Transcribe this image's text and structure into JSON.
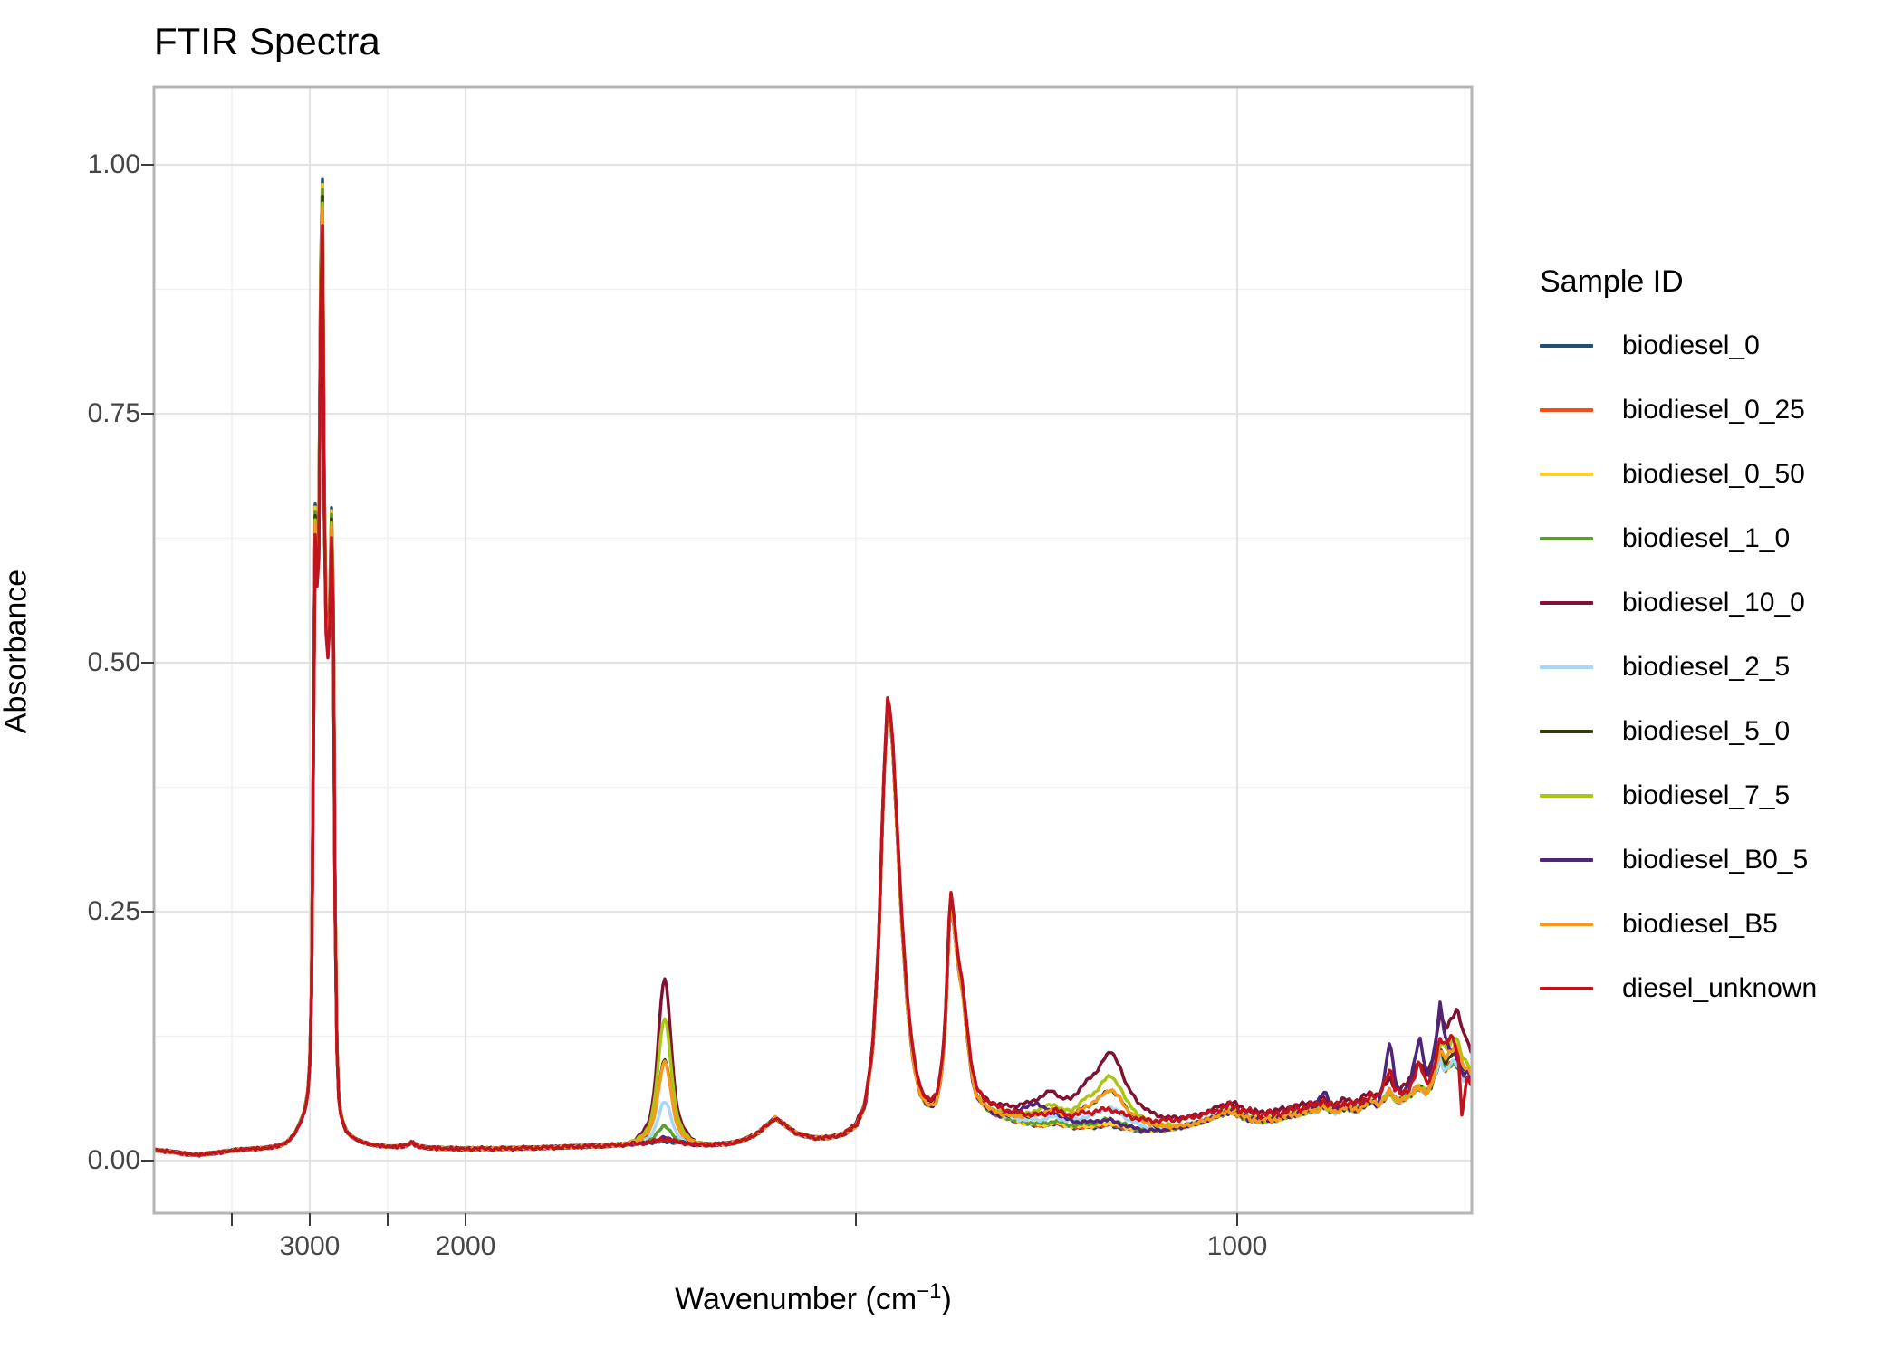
{
  "title": "FTIR Spectra",
  "y_axis": {
    "label": "Absorbance",
    "ticks": [
      {
        "value": 1.0,
        "label": "1.00"
      },
      {
        "value": 0.75,
        "label": "0.75"
      },
      {
        "value": 0.5,
        "label": "0.50"
      },
      {
        "value": 0.25,
        "label": "0.25"
      },
      {
        "value": 0.0,
        "label": "0.00"
      }
    ],
    "minor_ticks": [
      0.875,
      0.625,
      0.375,
      0.125
    ]
  },
  "x_axis": {
    "label_main": "Wavenumber (cm",
    "label_sup": "−1",
    "label_close": ")",
    "ticks": [
      {
        "value": 3500,
        "label": ""
      },
      {
        "value": 3000,
        "label": "3000"
      },
      {
        "value": 2500,
        "label": ""
      },
      {
        "value": 2000,
        "label": "2000"
      },
      {
        "value": 1500,
        "label": ""
      },
      {
        "value": 1000,
        "label": "1000"
      }
    ]
  },
  "legend": {
    "title": "Sample ID"
  },
  "colors": {
    "grid_major": "#e3e3e3",
    "grid_minor": "#f1f1f1",
    "panel_border": "#b5b5b5",
    "tick_mark": "#3c3c3c",
    "tick_text": "#454545"
  },
  "chart_data": {
    "type": "line",
    "title": "FTIR Spectra",
    "xlabel": "Wavenumber (cm^-1)",
    "ylabel": "Absorbance",
    "legend_title": "Sample ID",
    "x_reversed": true,
    "x_range": [
      4000,
      690
    ],
    "x_breaks": [
      3000,
      2000,
      1000
    ],
    "x_minor_breaks": [
      3500,
      2500,
      1500
    ],
    "y_breaks": [
      0.0,
      0.25,
      0.5,
      0.75,
      1.0
    ],
    "ylim": [
      -0.052,
      1.078
    ],
    "grid": true,
    "legend_position": "right",
    "peak_annotations": {
      "ch_stretch_peaks": [
        2963,
        2924,
        2856
      ],
      "ch_stretch_max_absorbance": 1.03,
      "carbonyl_center": 1745,
      "ch2_bend_peak": [
        1458,
        0.47
      ],
      "ch3_bend_peak": [
        1376,
        0.27
      ]
    },
    "base_spectrum": {
      "wavenumber": [
        4000,
        3950,
        3900,
        3850,
        3800,
        3740,
        3700,
        3650,
        3600,
        3550,
        3500,
        3440,
        3380,
        3320,
        3260,
        3200,
        3150,
        3100,
        3060,
        3030,
        3010,
        2998,
        2988,
        2980,
        2974,
        2968,
        2963,
        2958,
        2950,
        2942,
        2934,
        2928,
        2924,
        2919,
        2913,
        2906,
        2898,
        2890,
        2880,
        2870,
        2862,
        2856,
        2850,
        2844,
        2838,
        2830,
        2822,
        2814,
        2806,
        2795,
        2780,
        2760,
        2730,
        2700,
        2650,
        2600,
        2550,
        2500,
        2450,
        2400,
        2365,
        2345,
        2325,
        2300,
        2250,
        2200,
        2140,
        2080,
        2020,
        1960,
        1900,
        1862,
        1820,
        1800,
        1780,
        1765,
        1745,
        1725,
        1705,
        1685,
        1665,
        1645,
        1625,
        1603,
        1590,
        1575,
        1555,
        1535,
        1515,
        1500,
        1488,
        1478,
        1470,
        1464,
        1458,
        1452,
        1446,
        1440,
        1432,
        1424,
        1416,
        1408,
        1400,
        1394,
        1388,
        1383,
        1379,
        1376,
        1372,
        1368,
        1364,
        1360,
        1354,
        1348,
        1342,
        1334,
        1325,
        1315,
        1305,
        1295,
        1285,
        1275,
        1265,
        1255,
        1245,
        1238,
        1230,
        1220,
        1210,
        1200,
        1192,
        1184,
        1176,
        1168,
        1160,
        1152,
        1144,
        1136,
        1126,
        1116,
        1106,
        1096,
        1086,
        1076,
        1066,
        1056,
        1046,
        1036,
        1026,
        1016,
        1008,
        1000,
        992,
        984,
        976,
        968,
        960,
        952,
        944,
        936,
        928,
        920,
        912,
        904,
        896,
        888,
        880,
        872,
        864,
        856,
        848,
        840,
        832,
        824,
        816,
        808,
        800,
        794,
        788,
        782,
        776,
        770,
        764,
        758,
        752,
        746,
        740,
        734,
        728,
        722,
        716,
        710,
        704,
        698,
        692,
        684,
        678
      ],
      "absorbance": [
        0.011,
        0.01,
        0.009,
        0.008,
        0.007,
        0.006,
        0.006,
        0.007,
        0.008,
        0.009,
        0.01,
        0.011,
        0.012,
        0.012,
        0.013,
        0.015,
        0.018,
        0.026,
        0.038,
        0.05,
        0.07,
        0.1,
        0.17,
        0.32,
        0.48,
        0.6,
        0.645,
        0.6,
        0.555,
        0.6,
        0.74,
        0.92,
        0.975,
        0.945,
        0.8,
        0.62,
        0.54,
        0.5,
        0.505,
        0.545,
        0.615,
        0.645,
        0.57,
        0.4,
        0.26,
        0.14,
        0.085,
        0.062,
        0.05,
        0.042,
        0.034,
        0.028,
        0.024,
        0.021,
        0.018,
        0.016,
        0.015,
        0.014,
        0.014,
        0.015,
        0.016,
        0.019,
        0.016,
        0.014,
        0.013,
        0.013,
        0.012,
        0.012,
        0.012,
        0.012,
        0.013,
        0.014,
        0.015,
        0.016,
        0.017,
        0.018,
        0.019,
        0.018,
        0.016,
        0.016,
        0.017,
        0.02,
        0.028,
        0.043,
        0.035,
        0.027,
        0.023,
        0.023,
        0.027,
        0.035,
        0.055,
        0.11,
        0.22,
        0.37,
        0.465,
        0.42,
        0.33,
        0.24,
        0.15,
        0.095,
        0.068,
        0.057,
        0.055,
        0.06,
        0.085,
        0.13,
        0.21,
        0.265,
        0.24,
        0.21,
        0.185,
        0.17,
        0.125,
        0.085,
        0.065,
        0.057,
        0.05,
        0.046,
        0.043,
        0.041,
        0.039,
        0.037,
        0.036,
        0.035,
        0.036,
        0.038,
        0.036,
        0.034,
        0.033,
        0.034,
        0.033,
        0.034,
        0.035,
        0.036,
        0.034,
        0.033,
        0.032,
        0.031,
        0.03,
        0.03,
        0.03,
        0.031,
        0.032,
        0.033,
        0.035,
        0.037,
        0.039,
        0.042,
        0.045,
        0.048,
        0.05,
        0.047,
        0.044,
        0.042,
        0.041,
        0.04,
        0.042,
        0.041,
        0.043,
        0.045,
        0.046,
        0.047,
        0.049,
        0.051,
        0.05,
        0.056,
        0.052,
        0.049,
        0.052,
        0.054,
        0.051,
        0.052,
        0.057,
        0.06,
        0.056,
        0.062,
        0.07,
        0.062,
        0.06,
        0.062,
        0.065,
        0.068,
        0.074,
        0.072,
        0.068,
        0.075,
        0.088,
        0.102,
        0.09,
        0.096,
        0.099,
        0.094,
        0.082,
        0.086,
        0.075,
        0.07,
        0.073
      ]
    },
    "ester_shape": {
      "wavenumber": [
        1350,
        1320,
        1290,
        1262,
        1245,
        1232,
        1218,
        1205,
        1195,
        1185,
        1175,
        1165,
        1155,
        1145,
        1132,
        1118,
        1104,
        1090,
        1076,
        1062,
        1050
      ],
      "weight": [
        0,
        0.06,
        0.13,
        0.3,
        0.42,
        0.3,
        0.33,
        0.5,
        0.62,
        0.72,
        0.9,
        1.0,
        0.85,
        0.55,
        0.35,
        0.22,
        0.13,
        0.08,
        0.04,
        0.01,
        0
      ]
    },
    "carbonyl_center": 1745,
    "series": [
      {
        "id": "biodiesel_0",
        "label": "biodiesel_0",
        "color": "#1f4e79",
        "carbonyl_add": 0.0,
        "ester_factor": 0.0,
        "ch_scale": 1.053,
        "extras": []
      },
      {
        "id": "biodiesel_0_25",
        "label": "biodiesel_0_25",
        "color": "#ef4e17",
        "carbonyl_add": 0.002,
        "ester_factor": 0.001,
        "ch_scale": 1.046,
        "extras": []
      },
      {
        "id": "biodiesel_0_50",
        "label": "biodiesel_0_50",
        "color": "#fbcf2c",
        "carbonyl_add": 0.004,
        "ester_factor": 0.002,
        "ch_scale": 1.048,
        "extras": []
      },
      {
        "id": "biodiesel_1_0",
        "label": "biodiesel_1_0",
        "color": "#5b9e2d",
        "carbonyl_add": 0.016,
        "ester_factor": 0.006,
        "ch_scale": 1.042,
        "extras": []
      },
      {
        "id": "biodiesel_10_0",
        "label": "biodiesel_10_0",
        "color": "#7e1230",
        "carbonyl_add": 0.163,
        "ester_factor": 0.068,
        "ch_scale": 1.021,
        "extras": [
          [
            1520,
            0
          ],
          [
            1480,
            0.004
          ],
          [
            1440,
            0.006
          ],
          [
            1400,
            0.005
          ],
          [
            1360,
            0.008
          ],
          [
            1340,
            0.006
          ],
          [
            1100,
            0.006
          ],
          [
            1060,
            0.008
          ],
          [
            1015,
            0.009
          ],
          [
            985,
            0.008
          ],
          [
            940,
            0.008
          ],
          [
            910,
            0.008
          ],
          [
            885,
            0.007
          ],
          [
            855,
            0.008
          ],
          [
            820,
            0.009
          ],
          [
            800,
            0.013
          ],
          [
            780,
            0.012
          ],
          [
            768,
            0.02
          ],
          [
            761,
            0.027
          ],
          [
            752,
            0.016
          ],
          [
            742,
            0.025
          ],
          [
            734,
            0.048
          ],
          [
            726,
            0.04
          ],
          [
            718,
            0.045
          ],
          [
            712,
            0.057
          ],
          [
            706,
            0.05
          ],
          [
            700,
            0.038
          ],
          [
            694,
            0.028
          ],
          [
            678,
            0.024
          ]
        ]
      },
      {
        "id": "biodiesel_2_5",
        "label": "biodiesel_2_5",
        "color": "#a5d7f7",
        "carbonyl_add": 0.04,
        "ester_factor": 0.018,
        "ch_scale": 1.021,
        "extras": []
      },
      {
        "id": "biodiesel_5_0",
        "label": "biodiesel_5_0",
        "color": "#313d08",
        "carbonyl_add": 0.082,
        "ester_factor": 0.036,
        "ch_scale": 1.035,
        "extras": [
          [
            745,
            0
          ],
          [
            734,
            0.01
          ],
          [
            722,
            0.008
          ],
          [
            712,
            0.015
          ],
          [
            700,
            0.008
          ],
          [
            678,
            0.005
          ]
        ]
      },
      {
        "id": "biodiesel_7_5",
        "label": "biodiesel_7_5",
        "color": "#a9c614",
        "carbonyl_add": 0.124,
        "ester_factor": 0.05,
        "ch_scale": 1.028,
        "extras": [
          [
            745,
            0
          ],
          [
            738,
            0.01
          ],
          [
            730,
            0.022
          ],
          [
            722,
            0.018
          ],
          [
            714,
            0.028
          ],
          [
            706,
            0.02
          ],
          [
            698,
            0.012
          ],
          [
            678,
            0.008
          ]
        ]
      },
      {
        "id": "biodiesel_B0_5",
        "label": "biodiesel_B0_5",
        "color": "#4f2579",
        "carbonyl_add": 0.004,
        "ester_factor": 0.002,
        "ch_scale": 1.02,
        "extras": [
          [
            1310,
            0
          ],
          [
            1290,
            0.01
          ],
          [
            1262,
            0.022
          ],
          [
            1240,
            0.01
          ],
          [
            1215,
            0.005
          ],
          [
            1180,
            0.004
          ],
          [
            1150,
            0.002
          ],
          [
            1120,
            0
          ],
          [
            910,
            0
          ],
          [
            897,
            0.006
          ],
          [
            885,
            0.013
          ],
          [
            872,
            0.004
          ],
          [
            860,
            0
          ],
          [
            815,
            0
          ],
          [
            806,
            0.025
          ],
          [
            800,
            0.052
          ],
          [
            793,
            0.02
          ],
          [
            784,
            0.006
          ],
          [
            775,
            0.008
          ],
          [
            768,
            0.03
          ],
          [
            761,
            0.052
          ],
          [
            754,
            0.025
          ],
          [
            748,
            0.012
          ],
          [
            741,
            0.03
          ],
          [
            734,
            0.058
          ],
          [
            728,
            0.035
          ],
          [
            722,
            0.015
          ],
          [
            716,
            0.01
          ],
          [
            708,
            0.006
          ],
          [
            700,
            0.004
          ],
          [
            678,
            0.002
          ]
        ]
      },
      {
        "id": "biodiesel_B5",
        "label": "biodiesel_B5",
        "color": "#f8991d",
        "carbonyl_add": 0.08,
        "ester_factor": 0.036,
        "ch_scale": 1.022,
        "extras": [
          [
            745,
            0
          ],
          [
            736,
            0.008
          ],
          [
            728,
            0.014
          ],
          [
            718,
            0.012
          ],
          [
            712,
            0.018
          ],
          [
            704,
            0.012
          ],
          [
            696,
            0.008
          ],
          [
            678,
            0.006
          ]
        ]
      },
      {
        "id": "diesel_unknown",
        "label": "diesel_unknown",
        "color": "#c0131f",
        "carbonyl_add": 0.003,
        "ester_factor": 0.004,
        "ch_scale": 1.004,
        "extras": [
          [
            1500,
            0
          ],
          [
            1470,
            0.004
          ],
          [
            1458,
            0.006
          ],
          [
            1440,
            0.009
          ],
          [
            1420,
            0.007
          ],
          [
            1400,
            0.006
          ],
          [
            1380,
            0.009
          ],
          [
            1360,
            0.009
          ],
          [
            1330,
            0.008
          ],
          [
            1300,
            0.008
          ],
          [
            1270,
            0.009
          ],
          [
            1250,
            0.01
          ],
          [
            1238,
            0.012
          ],
          [
            1224,
            0.01
          ],
          [
            1205,
            0.012
          ],
          [
            1185,
            0.013
          ],
          [
            1165,
            0.012
          ],
          [
            1145,
            0.011
          ],
          [
            1120,
            0.01
          ],
          [
            1090,
            0.009
          ],
          [
            1050,
            0.007
          ],
          [
            1015,
            0.005
          ],
          [
            985,
            0.007
          ],
          [
            950,
            0.005
          ],
          [
            915,
            0.005
          ],
          [
            880,
            0.005
          ],
          [
            850,
            0.005
          ],
          [
            815,
            0.006
          ],
          [
            806,
            0.018
          ],
          [
            800,
            0.024
          ],
          [
            794,
            0.01
          ],
          [
            785,
            0.006
          ],
          [
            774,
            0.008
          ],
          [
            766,
            0.016
          ],
          [
            761,
            0.024
          ],
          [
            754,
            0.012
          ],
          [
            747,
            0.01
          ],
          [
            740,
            0.012
          ],
          [
            734,
            0.02
          ],
          [
            727,
            0.026
          ],
          [
            721,
            0.03
          ],
          [
            715,
            0.022
          ],
          [
            710,
            0.005
          ],
          [
            706,
            -0.04
          ],
          [
            702,
            -0.02
          ],
          [
            698,
            0.003
          ],
          [
            694,
            -0.002
          ],
          [
            686,
            0.012
          ],
          [
            678,
            0.018
          ]
        ]
      }
    ]
  }
}
